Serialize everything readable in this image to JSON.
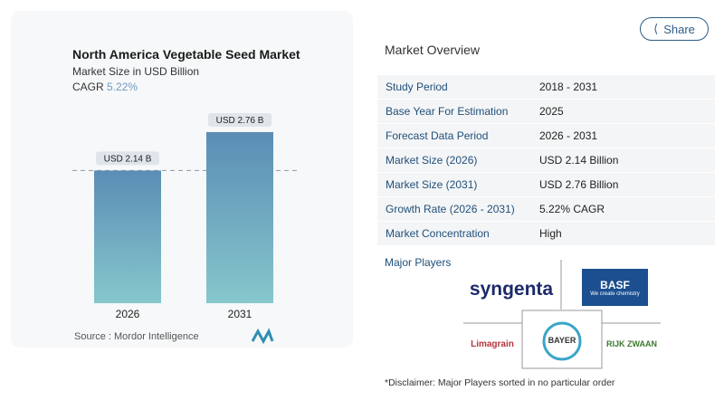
{
  "chart_data": {
    "type": "bar",
    "title": "North America Vegetable Seed Market",
    "subtitle": "Market Size in USD Billion",
    "cagr_label": "CAGR",
    "cagr_value": "5.22%",
    "categories": [
      "2026",
      "2031"
    ],
    "values": [
      2.14,
      2.76
    ],
    "data_labels": [
      "USD 2.14 B",
      "USD 2.76 B"
    ],
    "source": "Source :  Mordor Intelligence",
    "colors": {
      "bar_top": "#5b8db5",
      "bar_bottom": "#86c7cc"
    }
  },
  "share_label": "Share",
  "overview": {
    "title": "Market Overview",
    "rows": [
      {
        "k": "Study Period",
        "v": "2018 - 2031"
      },
      {
        "k": "Base Year For Estimation",
        "v": "2025"
      },
      {
        "k": "Forecast Data Period",
        "v": "2026 - 2031"
      },
      {
        "k": "Market Size (2026)",
        "v": "USD 2.14 Billion"
      },
      {
        "k": "Market Size (2031)",
        "v": "USD 2.76 Billion"
      },
      {
        "k": "Growth Rate (2026 - 2031)",
        "v": "5.22% CAGR"
      },
      {
        "k": "Market Concentration",
        "v": "High"
      }
    ]
  },
  "players": {
    "title": "Major Players",
    "logos": [
      "syngenta",
      "BASF",
      "We create chemistry",
      "Limagrain",
      "BAYER",
      "RIJK ZWAAN"
    ]
  },
  "disclaimer": "*Disclaimer: Major Players sorted in no particular order"
}
